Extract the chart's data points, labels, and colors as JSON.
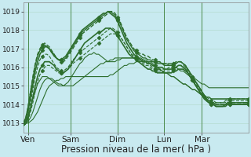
{
  "bg_color": "#c8eaf0",
  "grid_color": "#b0d8c8",
  "line_color": "#2d6e2d",
  "xlim": [
    0,
    96
  ],
  "ylim": [
    1012.5,
    1019.5
  ],
  "yticks": [
    1013,
    1014,
    1015,
    1016,
    1017,
    1018,
    1019
  ],
  "xlabel": "Pression niveau de la mer( hPa )",
  "xlabel_fontsize": 8.5,
  "xtick_labels": [
    "Ven",
    "Sam",
    "Dim",
    "Lun",
    "Mar"
  ],
  "xtick_positions": [
    2,
    20,
    40,
    60,
    76
  ],
  "vline_positions": [
    2,
    20,
    40,
    60,
    76
  ],
  "series": [
    {
      "y": [
        1013.0,
        1013.0,
        1013.0,
        1013.1,
        1013.2,
        1013.4,
        1013.6,
        1013.9,
        1014.2,
        1014.5,
        1014.8,
        1015.0,
        1015.1,
        1015.2,
        1015.3,
        1015.3,
        1015.4,
        1015.4,
        1015.5,
        1015.5,
        1015.5,
        1015.5,
        1015.5,
        1015.5,
        1015.5,
        1015.5,
        1015.5,
        1015.5,
        1015.5,
        1015.5,
        1015.5,
        1015.5,
        1015.5,
        1015.5,
        1015.5,
        1015.5,
        1015.5,
        1015.6,
        1015.6,
        1015.7,
        1015.8,
        1015.9,
        1016.0,
        1016.1,
        1016.1,
        1016.2,
        1016.2,
        1016.2,
        1016.3,
        1016.3,
        1016.3,
        1016.3,
        1016.3,
        1016.3,
        1016.3,
        1016.3,
        1016.3,
        1016.3,
        1016.3,
        1016.2,
        1016.2,
        1016.2,
        1016.1,
        1016.1,
        1016.0,
        1016.0,
        1015.9,
        1015.8,
        1015.8,
        1015.7,
        1015.6,
        1015.5,
        1015.4,
        1015.4,
        1015.3,
        1015.2,
        1015.1,
        1015.1,
        1015.0,
        1014.9,
        1014.9,
        1014.9,
        1014.9,
        1014.9,
        1014.9,
        1014.9,
        1014.9,
        1014.9,
        1014.9,
        1014.9,
        1014.9,
        1014.9,
        1014.9,
        1014.9,
        1014.9,
        1014.9,
        1014.9
      ],
      "ls": "-",
      "lw": 0.8,
      "marker": null,
      "ms": 0,
      "me": 8,
      "alpha": 1.0
    },
    {
      "y": [
        1013.0,
        1013.0,
        1013.1,
        1013.3,
        1013.6,
        1014.0,
        1014.4,
        1014.8,
        1015.1,
        1015.3,
        1015.4,
        1015.4,
        1015.4,
        1015.3,
        1015.2,
        1015.1,
        1015.1,
        1015.0,
        1015.0,
        1015.0,
        1015.0,
        1015.0,
        1015.1,
        1015.2,
        1015.3,
        1015.4,
        1015.5,
        1015.6,
        1015.7,
        1015.8,
        1015.9,
        1016.0,
        1016.1,
        1016.2,
        1016.2,
        1016.3,
        1016.3,
        1016.4,
        1016.4,
        1016.5,
        1016.5,
        1016.5,
        1016.5,
        1016.5,
        1016.5,
        1016.5,
        1016.5,
        1016.5,
        1016.5,
        1016.5,
        1016.4,
        1016.4,
        1016.3,
        1016.3,
        1016.2,
        1016.1,
        1016.0,
        1015.9,
        1015.9,
        1015.8,
        1015.7,
        1015.7,
        1015.6,
        1015.5,
        1015.5,
        1015.4,
        1015.3,
        1015.2,
        1015.1,
        1015.1,
        1015.0,
        1014.9,
        1014.8,
        1014.8,
        1014.7,
        1014.6,
        1014.5,
        1014.5,
        1014.4,
        1014.4,
        1014.3,
        1014.3,
        1014.3,
        1014.3,
        1014.3,
        1014.3,
        1014.3,
        1014.3,
        1014.3,
        1014.3,
        1014.3,
        1014.3,
        1014.3,
        1014.3,
        1014.3,
        1014.3,
        1014.3
      ],
      "ls": "-",
      "lw": 0.8,
      "marker": null,
      "ms": 0,
      "me": 8,
      "alpha": 1.0
    },
    {
      "y": [
        1013.0,
        1013.1,
        1013.4,
        1013.8,
        1014.3,
        1014.7,
        1015.1,
        1015.3,
        1015.5,
        1015.5,
        1015.5,
        1015.4,
        1015.3,
        1015.2,
        1015.1,
        1015.0,
        1015.0,
        1015.0,
        1015.1,
        1015.2,
        1015.4,
        1015.6,
        1015.8,
        1016.0,
        1016.2,
        1016.3,
        1016.5,
        1016.6,
        1016.7,
        1016.7,
        1016.8,
        1016.7,
        1016.7,
        1016.6,
        1016.5,
        1016.4,
        1016.3,
        1016.3,
        1016.3,
        1016.3,
        1016.4,
        1016.4,
        1016.5,
        1016.5,
        1016.5,
        1016.5,
        1016.5,
        1016.5,
        1016.5,
        1016.5,
        1016.5,
        1016.4,
        1016.4,
        1016.3,
        1016.3,
        1016.2,
        1016.1,
        1016.0,
        1015.9,
        1015.8,
        1015.7,
        1015.7,
        1015.6,
        1015.5,
        1015.5,
        1015.4,
        1015.3,
        1015.2,
        1015.1,
        1015.1,
        1015.0,
        1014.9,
        1014.8,
        1014.8,
        1014.7,
        1014.6,
        1014.5,
        1014.5,
        1014.4,
        1014.4,
        1014.3,
        1014.3,
        1014.3,
        1014.3,
        1014.3,
        1014.3,
        1014.3,
        1014.3,
        1014.3,
        1014.3,
        1014.3,
        1014.3,
        1014.3,
        1014.3,
        1014.3,
        1014.3,
        1014.3
      ],
      "ls": "-",
      "lw": 0.8,
      "marker": null,
      "ms": 0,
      "me": 8,
      "alpha": 1.0
    },
    {
      "y": [
        1013.0,
        1013.0,
        1013.2,
        1013.6,
        1014.1,
        1014.7,
        1015.2,
        1015.6,
        1015.8,
        1016.0,
        1016.1,
        1016.1,
        1016.0,
        1015.9,
        1015.8,
        1015.7,
        1015.7,
        1015.7,
        1015.8,
        1015.9,
        1016.0,
        1016.2,
        1016.3,
        1016.4,
        1016.5,
        1016.6,
        1016.7,
        1016.8,
        1016.9,
        1017.0,
        1017.1,
        1017.2,
        1017.3,
        1017.4,
        1017.5,
        1017.6,
        1017.7,
        1017.8,
        1017.8,
        1017.8,
        1017.7,
        1017.6,
        1017.5,
        1017.3,
        1017.1,
        1016.9,
        1016.7,
        1016.6,
        1016.5,
        1016.5,
        1016.4,
        1016.3,
        1016.2,
        1016.2,
        1016.1,
        1016.0,
        1015.9,
        1015.9,
        1015.9,
        1015.9,
        1015.9,
        1015.9,
        1016.0,
        1016.0,
        1016.1,
        1016.2,
        1016.3,
        1016.3,
        1016.2,
        1016.0,
        1015.9,
        1015.7,
        1015.5,
        1015.3,
        1015.1,
        1014.9,
        1014.7,
        1014.5,
        1014.4,
        1014.3,
        1014.2,
        1014.2,
        1014.1,
        1014.1,
        1014.1,
        1014.1,
        1014.1,
        1014.2,
        1014.2,
        1014.2,
        1014.2,
        1014.2,
        1014.2,
        1014.2,
        1014.2,
        1014.2,
        1014.2
      ],
      "ls": "--",
      "lw": 0.8,
      "marker": "D",
      "ms": 2.5,
      "me": 8,
      "alpha": 1.0
    },
    {
      "y": [
        1013.0,
        1013.1,
        1013.5,
        1014.1,
        1014.8,
        1015.5,
        1016.0,
        1016.4,
        1016.6,
        1016.7,
        1016.7,
        1016.6,
        1016.4,
        1016.2,
        1016.0,
        1015.9,
        1015.8,
        1015.8,
        1015.9,
        1016.0,
        1016.2,
        1016.4,
        1016.5,
        1016.7,
        1016.8,
        1016.9,
        1017.0,
        1017.1,
        1017.2,
        1017.3,
        1017.4,
        1017.5,
        1017.6,
        1017.7,
        1017.8,
        1017.9,
        1018.0,
        1018.1,
        1018.1,
        1018.0,
        1017.9,
        1017.7,
        1017.5,
        1017.3,
        1017.1,
        1016.9,
        1016.7,
        1016.6,
        1016.5,
        1016.4,
        1016.3,
        1016.2,
        1016.1,
        1016.1,
        1016.0,
        1015.9,
        1015.9,
        1015.8,
        1015.8,
        1015.8,
        1015.8,
        1015.8,
        1015.8,
        1015.8,
        1015.9,
        1016.0,
        1016.1,
        1016.1,
        1016.1,
        1016.0,
        1015.8,
        1015.6,
        1015.4,
        1015.2,
        1015.0,
        1014.8,
        1014.6,
        1014.4,
        1014.3,
        1014.2,
        1014.1,
        1014.1,
        1014.1,
        1014.1,
        1014.1,
        1014.1,
        1014.2,
        1014.3,
        1014.3,
        1014.3,
        1014.3,
        1014.3,
        1014.3,
        1014.3,
        1014.3,
        1014.3,
        1014.3
      ],
      "ls": "--",
      "lw": 0.8,
      "marker": "D",
      "ms": 2.5,
      "me": 8,
      "alpha": 1.0
    },
    {
      "y": [
        1013.0,
        1013.3,
        1013.9,
        1014.7,
        1015.5,
        1016.2,
        1016.7,
        1017.0,
        1017.2,
        1017.3,
        1017.2,
        1017.1,
        1016.9,
        1016.7,
        1016.5,
        1016.4,
        1016.3,
        1016.3,
        1016.4,
        1016.6,
        1016.8,
        1017.0,
        1017.2,
        1017.4,
        1017.6,
        1017.8,
        1017.9,
        1018.0,
        1018.1,
        1018.2,
        1018.3,
        1018.4,
        1018.5,
        1018.6,
        1018.7,
        1018.8,
        1018.9,
        1019.0,
        1019.0,
        1018.9,
        1018.7,
        1018.5,
        1018.2,
        1017.9,
        1017.6,
        1017.4,
        1017.2,
        1017.0,
        1016.9,
        1016.8,
        1016.7,
        1016.7,
        1016.6,
        1016.6,
        1016.5,
        1016.4,
        1016.4,
        1016.3,
        1016.3,
        1016.2,
        1016.2,
        1016.2,
        1016.2,
        1016.2,
        1016.2,
        1016.3,
        1016.3,
        1016.3,
        1016.2,
        1016.1,
        1015.9,
        1015.7,
        1015.5,
        1015.3,
        1015.1,
        1014.9,
        1014.7,
        1014.5,
        1014.3,
        1014.2,
        1014.1,
        1014.1,
        1014.0,
        1014.0,
        1014.0,
        1014.0,
        1014.0,
        1014.1,
        1014.1,
        1014.1,
        1014.1,
        1014.1,
        1014.1,
        1014.1,
        1014.1,
        1014.1,
        1014.1
      ],
      "ls": "--",
      "lw": 1.0,
      "marker": "D",
      "ms": 2.5,
      "me": 8,
      "alpha": 1.0
    },
    {
      "y": [
        1013.0,
        1013.3,
        1013.9,
        1014.7,
        1015.4,
        1016.1,
        1016.6,
        1016.9,
        1017.1,
        1017.2,
        1017.1,
        1017.0,
        1016.8,
        1016.6,
        1016.5,
        1016.4,
        1016.4,
        1016.4,
        1016.5,
        1016.7,
        1016.9,
        1017.1,
        1017.3,
        1017.5,
        1017.7,
        1017.9,
        1018.0,
        1018.1,
        1018.2,
        1018.3,
        1018.4,
        1018.5,
        1018.6,
        1018.7,
        1018.8,
        1018.9,
        1019.0,
        1019.0,
        1018.9,
        1018.8,
        1018.6,
        1018.4,
        1018.1,
        1017.8,
        1017.5,
        1017.3,
        1017.1,
        1016.9,
        1016.8,
        1016.7,
        1016.6,
        1016.5,
        1016.5,
        1016.4,
        1016.4,
        1016.3,
        1016.3,
        1016.2,
        1016.2,
        1016.2,
        1016.1,
        1016.1,
        1016.1,
        1016.1,
        1016.2,
        1016.2,
        1016.3,
        1016.3,
        1016.2,
        1016.1,
        1015.9,
        1015.7,
        1015.5,
        1015.3,
        1015.1,
        1014.9,
        1014.7,
        1014.5,
        1014.3,
        1014.2,
        1014.1,
        1014.1,
        1014.0,
        1014.0,
        1014.0,
        1014.0,
        1014.0,
        1014.1,
        1014.1,
        1014.1,
        1014.1,
        1014.1,
        1014.1,
        1014.1,
        1014.1,
        1014.1,
        1014.1
      ],
      "ls": "-",
      "lw": 1.0,
      "marker": "D",
      "ms": 2.5,
      "me": 8,
      "alpha": 1.0
    },
    {
      "y": [
        1013.0,
        1013.2,
        1013.7,
        1014.4,
        1015.1,
        1015.8,
        1016.3,
        1016.7,
        1016.9,
        1017.1,
        1017.1,
        1017.0,
        1016.8,
        1016.7,
        1016.5,
        1016.4,
        1016.4,
        1016.5,
        1016.6,
        1016.8,
        1017.0,
        1017.2,
        1017.4,
        1017.6,
        1017.8,
        1018.0,
        1018.1,
        1018.2,
        1018.3,
        1018.4,
        1018.5,
        1018.6,
        1018.7,
        1018.8,
        1018.9,
        1018.9,
        1019.0,
        1018.9,
        1018.8,
        1018.7,
        1018.5,
        1018.2,
        1017.9,
        1017.6,
        1017.3,
        1017.1,
        1016.9,
        1016.7,
        1016.6,
        1016.5,
        1016.4,
        1016.3,
        1016.3,
        1016.2,
        1016.2,
        1016.1,
        1016.1,
        1016.0,
        1016.0,
        1016.0,
        1015.9,
        1015.9,
        1015.9,
        1015.9,
        1016.0,
        1016.0,
        1016.1,
        1016.1,
        1016.0,
        1015.9,
        1015.7,
        1015.5,
        1015.3,
        1015.1,
        1014.9,
        1014.7,
        1014.5,
        1014.3,
        1014.2,
        1014.1,
        1014.0,
        1014.0,
        1013.9,
        1013.9,
        1013.9,
        1013.9,
        1014.0,
        1014.0,
        1014.0,
        1014.0,
        1014.0,
        1014.0,
        1014.0,
        1014.0,
        1014.0,
        1014.0,
        1014.0
      ],
      "ls": "-",
      "lw": 1.2,
      "marker": "D",
      "ms": 2.5,
      "me": 8,
      "alpha": 1.0
    },
    {
      "y": [
        1013.0,
        1013.0,
        1013.3,
        1013.8,
        1014.4,
        1015.0,
        1015.5,
        1015.9,
        1016.1,
        1016.3,
        1016.3,
        1016.3,
        1016.2,
        1016.1,
        1015.9,
        1015.8,
        1015.7,
        1015.7,
        1015.8,
        1015.9,
        1016.1,
        1016.3,
        1016.5,
        1016.7,
        1016.9,
        1017.1,
        1017.3,
        1017.4,
        1017.5,
        1017.6,
        1017.7,
        1017.8,
        1017.9,
        1017.9,
        1018.0,
        1018.1,
        1018.1,
        1018.1,
        1018.0,
        1017.9,
        1017.7,
        1017.5,
        1017.3,
        1017.1,
        1016.9,
        1016.7,
        1016.6,
        1016.5,
        1016.4,
        1016.3,
        1016.2,
        1016.1,
        1016.0,
        1015.9,
        1015.9,
        1015.8,
        1015.8,
        1015.7,
        1015.7,
        1015.7,
        1015.7,
        1015.7,
        1015.7,
        1015.7,
        1015.8,
        1015.8,
        1015.9,
        1015.9,
        1015.9,
        1015.8,
        1015.7,
        1015.5,
        1015.3,
        1015.1,
        1014.9,
        1014.7,
        1014.5,
        1014.4,
        1014.2,
        1014.1,
        1014.0,
        1014.0,
        1013.9,
        1013.9,
        1013.9,
        1013.9,
        1013.9,
        1014.0,
        1014.0,
        1014.0,
        1014.0,
        1014.0,
        1014.0,
        1014.0,
        1014.0,
        1014.0,
        1014.0
      ],
      "ls": "-",
      "lw": 1.2,
      "marker": "D",
      "ms": 2.5,
      "me": 8,
      "alpha": 1.0
    }
  ]
}
